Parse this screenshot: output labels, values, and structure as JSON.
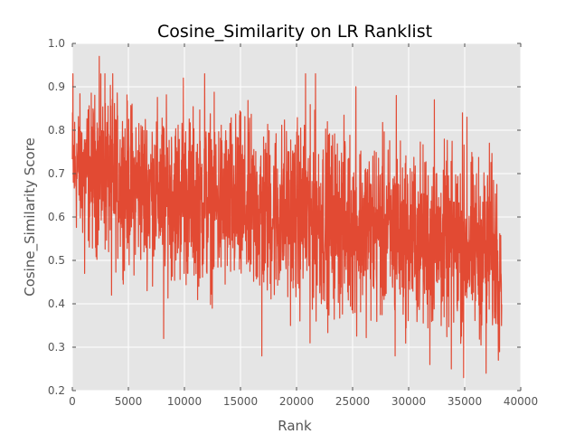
{
  "chart_data": {
    "type": "line",
    "title": "Cosine_Similarity on LR Ranklist",
    "xlabel": "Rank",
    "ylabel": "Cosine_Similarity Score",
    "xlim": [
      0,
      40000
    ],
    "ylim": [
      0.2,
      1.0
    ],
    "xticks": [
      "0",
      "5000",
      "10000",
      "15000",
      "20000",
      "25000",
      "30000",
      "35000",
      "40000"
    ],
    "yticks": [
      "0.2",
      "0.3",
      "0.4",
      "0.5",
      "0.6",
      "0.7",
      "0.8",
      "0.9",
      "1.0"
    ],
    "grid": true,
    "legend": "none",
    "colors": {
      "line": "#E24A33",
      "plot_background": "#E5E5E5",
      "grid": "#FFFFFF"
    },
    "series": [
      {
        "x": [
          0,
          1000,
          2500,
          5000,
          7500,
          10000,
          12500,
          15000,
          17500,
          20000,
          22500,
          25000,
          27500,
          30000,
          32500,
          35000,
          37500,
          38300
        ],
        "upper": [
          0.89,
          0.9,
          0.91,
          0.89,
          0.88,
          0.87,
          0.87,
          0.86,
          0.85,
          0.85,
          0.84,
          0.82,
          0.81,
          0.79,
          0.78,
          0.77,
          0.75,
          0.74
        ],
        "lower": [
          0.55,
          0.51,
          0.49,
          0.46,
          0.44,
          0.42,
          0.4,
          0.38,
          0.37,
          0.36,
          0.35,
          0.34,
          0.33,
          0.32,
          0.31,
          0.3,
          0.29,
          0.29
        ],
        "upper_spikes": [
          [
            50,
            0.93
          ],
          [
            2400,
            0.97
          ],
          [
            2900,
            0.93
          ],
          [
            3600,
            0.93
          ],
          [
            9900,
            0.92
          ],
          [
            11800,
            0.93
          ],
          [
            20800,
            0.93
          ],
          [
            21700,
            0.93
          ],
          [
            25300,
            0.9
          ],
          [
            28900,
            0.88
          ],
          [
            32300,
            0.87
          ],
          [
            34800,
            0.84
          ],
          [
            35200,
            0.83
          ],
          [
            37200,
            0.77
          ]
        ],
        "lower_spikes": [
          [
            1100,
            0.47
          ],
          [
            3500,
            0.42
          ],
          [
            8150,
            0.32
          ],
          [
            16900,
            0.28
          ],
          [
            21200,
            0.31
          ],
          [
            28800,
            0.28
          ],
          [
            31900,
            0.26
          ],
          [
            33800,
            0.25
          ],
          [
            34900,
            0.23
          ],
          [
            36900,
            0.24
          ],
          [
            38000,
            0.27
          ]
        ]
      }
    ]
  }
}
